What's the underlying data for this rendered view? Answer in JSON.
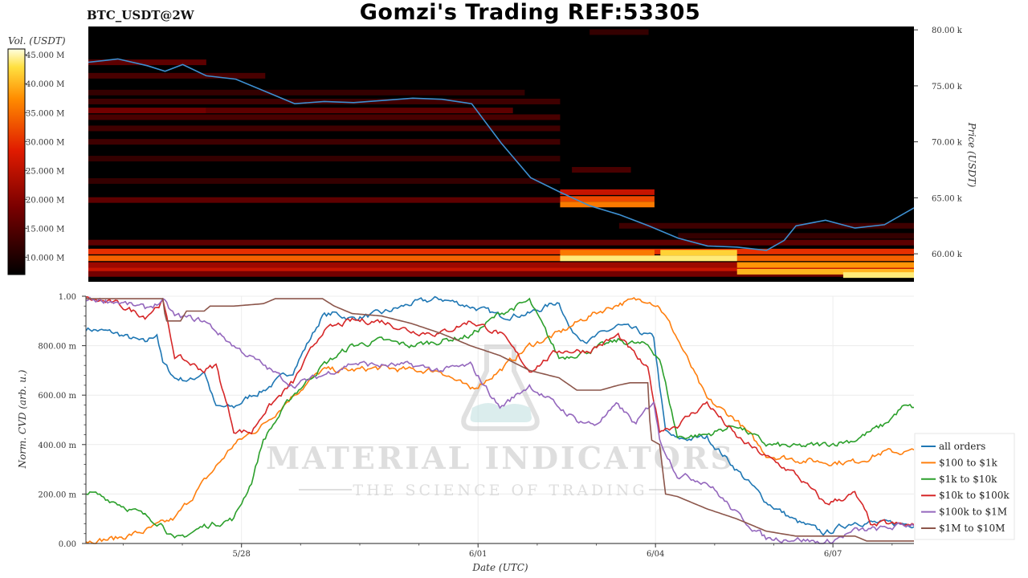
{
  "header": {
    "symbol": "BTC_USDT@2W",
    "title": "Gomzi's Trading REF:53305"
  },
  "watermark": {
    "brand": "MATERIAL INDICATORS",
    "tagline": "THE SCIENCE OF TRADING"
  },
  "colors": {
    "price_line": "#3d8fd1",
    "heatmap_background": "#000000",
    "all_orders": "#1f77b4",
    "100_to_1k": "#ff7f0e",
    "1k_to_10k": "#2ca02c",
    "10k_to_100k": "#d62728",
    "100k_to_1m": "#9467bd",
    "1m_to_10m": "#8c564b"
  },
  "chart_data": [
    {
      "type": "heatmap",
      "colorbar": {
        "label": "Vol. (USDT)",
        "ticks": [
          "10.000 M",
          "15.000 M",
          "20.000 M",
          "25.000 M",
          "30.000 M",
          "35.000 M",
          "40.000 M",
          "45.000 M"
        ],
        "range": [
          7,
          46
        ]
      },
      "y_axis": {
        "label": "Price (USDT)",
        "ticks": [
          "60.00 k",
          "65.00 k",
          "70.00 k",
          "75.00 k",
          "80.00 k"
        ],
        "range": [
          57.5,
          80.3
        ]
      },
      "x_range": [
        0,
        14
      ],
      "price": {
        "x": [
          0,
          0.5,
          1,
          1.3,
          1.6,
          2,
          2.5,
          3,
          3.5,
          4,
          4.5,
          5,
          5.5,
          6,
          6.5,
          7,
          7.5,
          8,
          8.5,
          9,
          9.5,
          10,
          10.5,
          11,
          11.5,
          11.8,
          12,
          12.5,
          13,
          13.5,
          14
        ],
        "y": [
          77.1,
          77.4,
          76.8,
          76.3,
          76.9,
          75.9,
          75.6,
          74.5,
          73.4,
          73.6,
          73.5,
          73.7,
          73.9,
          73.8,
          73.4,
          69.9,
          66.8,
          65.5,
          64.3,
          63.5,
          62.5,
          61.4,
          60.7,
          60.6,
          60.3,
          61.2,
          62.5,
          63.0,
          62.3,
          62.6,
          64.1
        ]
      },
      "walls": [
        {
          "x0": 0,
          "x1": 14,
          "price": 59.6,
          "vol": 34
        },
        {
          "x0": 0,
          "x1": 14,
          "price": 60.2,
          "vol": 30
        },
        {
          "x0": 0,
          "x1": 14,
          "price": 58.6,
          "vol": 26
        },
        {
          "x0": 0,
          "x1": 14,
          "price": 58.2,
          "vol": 18
        },
        {
          "x0": 0,
          "x1": 14,
          "price": 61.0,
          "vol": 16
        },
        {
          "x0": 0,
          "x1": 14,
          "price": 59.0,
          "vol": 22
        },
        {
          "x0": 8,
          "x1": 11,
          "price": 59.6,
          "vol": 44
        },
        {
          "x0": 9.7,
          "x1": 11,
          "price": 60.1,
          "vol": 42
        },
        {
          "x0": 8,
          "x1": 9.6,
          "price": 60.1,
          "vol": 36
        },
        {
          "x0": 11,
          "x1": 14,
          "price": 59.0,
          "vol": 38
        },
        {
          "x0": 11,
          "x1": 14,
          "price": 58.4,
          "vol": 40
        },
        {
          "x0": 12.8,
          "x1": 14,
          "price": 58.1,
          "vol": 44
        },
        {
          "x0": 8,
          "x1": 9.6,
          "price": 64.9,
          "vol": 32
        },
        {
          "x0": 8,
          "x1": 9.6,
          "price": 64.4,
          "vol": 36
        },
        {
          "x0": 8,
          "x1": 9.6,
          "price": 65.5,
          "vol": 26
        },
        {
          "x0": 0,
          "x1": 8,
          "price": 64.8,
          "vol": 16
        },
        {
          "x0": 0,
          "x1": 8,
          "price": 66.5,
          "vol": 12
        },
        {
          "x0": 0,
          "x1": 8,
          "price": 68.5,
          "vol": 12
        },
        {
          "x0": 0,
          "x1": 8,
          "price": 70.0,
          "vol": 13
        },
        {
          "x0": 0,
          "x1": 8,
          "price": 71.2,
          "vol": 13
        },
        {
          "x0": 0,
          "x1": 8,
          "price": 72.2,
          "vol": 14
        },
        {
          "x0": 0,
          "x1": 2,
          "price": 72.8,
          "vol": 18
        },
        {
          "x0": 2,
          "x1": 7.2,
          "price": 72.8,
          "vol": 16
        },
        {
          "x0": 0,
          "x1": 8,
          "price": 73.6,
          "vol": 13
        },
        {
          "x0": 0,
          "x1": 7.4,
          "price": 74.4,
          "vol": 12
        },
        {
          "x0": 0,
          "x1": 3,
          "price": 75.9,
          "vol": 14
        },
        {
          "x0": 0,
          "x1": 2,
          "price": 77.1,
          "vol": 16
        },
        {
          "x0": 8.2,
          "x1": 9.2,
          "price": 67.5,
          "vol": 14
        },
        {
          "x0": 9,
          "x1": 14,
          "price": 62.5,
          "vol": 13
        },
        {
          "x0": 10,
          "x1": 14,
          "price": 61.6,
          "vol": 12
        },
        {
          "x0": 8.5,
          "x1": 9.5,
          "price": 79.8,
          "vol": 12
        }
      ]
    },
    {
      "type": "line",
      "xlabel": "Date (UTC)",
      "ylabel": "Norm. CVD (arb. u.)",
      "ylim": [
        0,
        1
      ],
      "xlim": [
        0,
        14
      ],
      "y_ticks": [
        "0.00",
        "200.00 m",
        "400.00 m",
        "600.00 m",
        "800.00 m",
        "1.00"
      ],
      "x_ticks": [
        {
          "label": "5/28",
          "x": 2.63
        },
        {
          "label": "6/01",
          "x": 6.63
        },
        {
          "label": "6/04",
          "x": 9.63
        },
        {
          "label": "6/07",
          "x": 12.63
        }
      ],
      "legend": "bottom-right",
      "series": [
        {
          "name": "all orders",
          "color_key": "all_orders",
          "x": [
            0,
            0.5,
            1,
            1.2,
            1.3,
            1.5,
            1.8,
            2,
            2.2,
            2.5,
            2.8,
            3,
            3.5,
            4,
            4.2,
            4.5,
            5,
            5.5,
            6,
            6.5,
            7,
            7.5,
            8,
            8.2,
            8.5,
            9,
            9.3,
            9.6,
            9.8,
            10,
            10.5,
            11,
            11.5,
            12,
            12.5,
            13,
            13.5,
            14
          ],
          "y": [
            0.87,
            0.85,
            0.81,
            0.85,
            0.73,
            0.67,
            0.66,
            0.7,
            0.55,
            0.55,
            0.6,
            0.62,
            0.7,
            0.92,
            0.93,
            0.91,
            0.93,
            0.97,
            0.99,
            0.96,
            0.92,
            0.93,
            0.98,
            0.86,
            0.82,
            0.88,
            0.86,
            0.83,
            0.45,
            0.42,
            0.43,
            0.3,
            0.17,
            0.09,
            0.04,
            0.09,
            0.08,
            0.08
          ]
        },
        {
          "name": "$100 to $1k",
          "color_key": "100_to_1k",
          "x": [
            0,
            0.5,
            1,
            1.5,
            2,
            2.5,
            3,
            3.5,
            4,
            4.5,
            5,
            5.5,
            6,
            6.5,
            7,
            7.5,
            8,
            8.5,
            9,
            9.5,
            9.7,
            10,
            10.5,
            11,
            11.5,
            12,
            12.5,
            13,
            13.5,
            14
          ],
          "y": [
            0.01,
            0.02,
            0.05,
            0.1,
            0.25,
            0.4,
            0.48,
            0.6,
            0.7,
            0.7,
            0.71,
            0.7,
            0.7,
            0.62,
            0.7,
            0.8,
            0.85,
            0.92,
            0.97,
            0.99,
            0.96,
            0.83,
            0.58,
            0.5,
            0.36,
            0.34,
            0.33,
            0.33,
            0.37,
            0.37
          ]
        },
        {
          "name": "$1k to $10k",
          "color_key": "1k_to_10k",
          "x": [
            0,
            0.5,
            1,
            1.3,
            1.5,
            2,
            2.5,
            2.8,
            3,
            3.5,
            4,
            4.5,
            5,
            5.5,
            6,
            6.5,
            7,
            7.5,
            8,
            8.5,
            9,
            9.5,
            9.7,
            10,
            10.5,
            11,
            11.5,
            12,
            12.5,
            13,
            13.5,
            13.8,
            14
          ],
          "y": [
            0.21,
            0.17,
            0.11,
            0.08,
            0.01,
            0.07,
            0.1,
            0.25,
            0.42,
            0.6,
            0.72,
            0.8,
            0.82,
            0.8,
            0.82,
            0.84,
            0.93,
            0.98,
            0.75,
            0.78,
            0.82,
            0.8,
            0.75,
            0.43,
            0.44,
            0.48,
            0.4,
            0.39,
            0.4,
            0.42,
            0.48,
            0.55,
            0.55
          ]
        },
        {
          "name": "$10k to $100k",
          "color_key": "10k_to_100k",
          "x": [
            0,
            0.5,
            1,
            1.3,
            1.5,
            2,
            2.2,
            2.5,
            2.8,
            3,
            3.5,
            4,
            4.5,
            5,
            5.5,
            6,
            6.5,
            7,
            7.5,
            8,
            8.5,
            9,
            9.5,
            9.7,
            10,
            10.5,
            11,
            11.5,
            12,
            12.5,
            13,
            13.3,
            13.5,
            14
          ],
          "y": [
            0.99,
            0.97,
            0.92,
            0.98,
            0.76,
            0.7,
            0.72,
            0.46,
            0.45,
            0.53,
            0.65,
            0.86,
            0.9,
            0.9,
            0.86,
            0.85,
            0.9,
            0.85,
            0.7,
            0.78,
            0.78,
            0.84,
            0.7,
            0.46,
            0.48,
            0.57,
            0.43,
            0.35,
            0.28,
            0.16,
            0.2,
            0.07,
            0.08,
            0.07
          ]
        },
        {
          "name": "$100k to $1M",
          "color_key": "100k_to_1m",
          "x": [
            0,
            0.5,
            1,
            1.3,
            1.5,
            2,
            2.5,
            3,
            3.5,
            4,
            4.5,
            5,
            5.5,
            6,
            6.5,
            7,
            7.5,
            8,
            8.3,
            8.6,
            9,
            9.3,
            9.6,
            9.7,
            10,
            10.5,
            11,
            11.5,
            12,
            12.5,
            13,
            13.5,
            14
          ],
          "y": [
            0.99,
            0.98,
            0.95,
            0.98,
            0.92,
            0.9,
            0.8,
            0.72,
            0.64,
            0.68,
            0.73,
            0.72,
            0.72,
            0.7,
            0.72,
            0.55,
            0.64,
            0.55,
            0.5,
            0.48,
            0.56,
            0.48,
            0.58,
            0.42,
            0.28,
            0.25,
            0.12,
            0.02,
            0.02,
            0.0,
            0.05,
            0.06,
            0.08
          ]
        },
        {
          "name": "$1M to $10M",
          "color_key": "1m_to_10m",
          "x": [
            0,
            1.3,
            1.35,
            1.6,
            1.7,
            2,
            2.1,
            2.5,
            3,
            3.2,
            3.5,
            4,
            4.2,
            4.5,
            5,
            5.5,
            6,
            6.5,
            7,
            7.5,
            8,
            8.3,
            8.7,
            9,
            9.2,
            9.5,
            9.55,
            9.7,
            9.8,
            10,
            10.5,
            11,
            11.5,
            12,
            12.5,
            13,
            13.2,
            13.5,
            14
          ],
          "y": [
            0.99,
            0.99,
            0.9,
            0.9,
            0.94,
            0.94,
            0.96,
            0.96,
            0.97,
            0.99,
            0.99,
            0.99,
            0.96,
            0.93,
            0.92,
            0.89,
            0.85,
            0.8,
            0.76,
            0.7,
            0.67,
            0.62,
            0.62,
            0.64,
            0.65,
            0.65,
            0.42,
            0.4,
            0.2,
            0.19,
            0.14,
            0.1,
            0.05,
            0.03,
            0.03,
            0.03,
            0.01,
            0.01,
            0.01
          ]
        }
      ]
    }
  ]
}
